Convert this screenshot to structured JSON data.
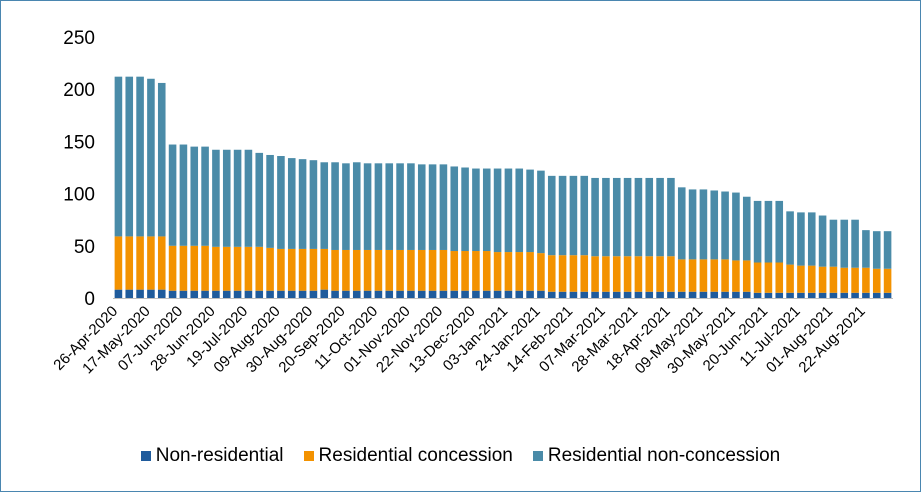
{
  "chart_data": {
    "type": "bar",
    "stacked": true,
    "title": "",
    "xlabel": "",
    "ylabel": "",
    "ylim": [
      0,
      250
    ],
    "yticks": [
      0,
      50,
      100,
      150,
      200,
      250
    ],
    "grid": false,
    "legend_position": "bottom",
    "x_tick_labels": [
      "26-Apr-2020",
      "17-May-2020",
      "07-Jun-2020",
      "28-Jun-2020",
      "19-Jul-2020",
      "09-Aug-2020",
      "30-Aug-2020",
      "20-Sep-2020",
      "11-Oct-2020",
      "01-Nov-2020",
      "22-Nov-2020",
      "13-Dec-2020",
      "03-Jan-2021",
      "24-Jan-2021",
      "14-Feb-2021",
      "07-Mar-2021",
      "28-Mar-2021",
      "18-Apr-2021",
      "09-May-2021",
      "30-May-2021",
      "20-Jun-2021",
      "11-Jul-2021",
      "01-Aug-2021",
      "22-Aug-2021"
    ],
    "categories": [
      "26-Apr-2020",
      "03-May-2020",
      "10-May-2020",
      "17-May-2020",
      "24-May-2020",
      "31-May-2020",
      "07-Jun-2020",
      "14-Jun-2020",
      "21-Jun-2020",
      "28-Jun-2020",
      "05-Jul-2020",
      "12-Jul-2020",
      "19-Jul-2020",
      "26-Jul-2020",
      "02-Aug-2020",
      "09-Aug-2020",
      "16-Aug-2020",
      "23-Aug-2020",
      "30-Aug-2020",
      "06-Sep-2020",
      "13-Sep-2020",
      "20-Sep-2020",
      "27-Sep-2020",
      "04-Oct-2020",
      "11-Oct-2020",
      "18-Oct-2020",
      "25-Oct-2020",
      "01-Nov-2020",
      "08-Nov-2020",
      "15-Nov-2020",
      "22-Nov-2020",
      "29-Nov-2020",
      "06-Dec-2020",
      "13-Dec-2020",
      "20-Dec-2020",
      "27-Dec-2020",
      "03-Jan-2021",
      "10-Jan-2021",
      "17-Jan-2021",
      "24-Jan-2021",
      "31-Jan-2021",
      "07-Feb-2021",
      "14-Feb-2021",
      "21-Feb-2021",
      "28-Feb-2021",
      "07-Mar-2021",
      "14-Mar-2021",
      "21-Mar-2021",
      "28-Mar-2021",
      "04-Apr-2021",
      "11-Apr-2021",
      "18-Apr-2021",
      "25-Apr-2021",
      "02-May-2021",
      "09-May-2021",
      "16-May-2021",
      "23-May-2021",
      "30-May-2021",
      "06-Jun-2021",
      "13-Jun-2021",
      "20-Jun-2021",
      "27-Jun-2021",
      "04-Jul-2021",
      "11-Jul-2021",
      "18-Jul-2021",
      "25-Jul-2021",
      "01-Aug-2021",
      "08-Aug-2021",
      "15-Aug-2021",
      "22-Aug-2021",
      "29-Aug-2021",
      "05-Sep-2021"
    ],
    "series": [
      {
        "name": "Non-residential",
        "color": "#1f5b9c",
        "values": [
          8,
          8,
          8,
          8,
          8,
          7,
          7,
          7,
          7,
          7,
          7,
          7,
          7,
          7,
          7,
          7,
          7,
          7,
          7,
          8,
          7,
          7,
          7,
          7,
          7,
          7,
          7,
          7,
          7,
          7,
          7,
          7,
          7,
          7,
          7,
          7,
          7,
          7,
          7,
          7,
          6,
          6,
          6,
          6,
          6,
          6,
          6,
          6,
          6,
          6,
          6,
          6,
          6,
          6,
          6,
          6,
          6,
          6,
          6,
          5,
          5,
          5,
          5,
          5,
          5,
          5,
          5,
          5,
          5,
          5,
          5,
          5
        ]
      },
      {
        "name": "Residential concession",
        "color": "#f39200",
        "values": [
          51,
          51,
          51,
          51,
          51,
          43,
          43,
          43,
          43,
          42,
          42,
          42,
          42,
          42,
          41,
          40,
          40,
          40,
          40,
          39,
          39,
          39,
          39,
          39,
          39,
          39,
          39,
          39,
          39,
          39,
          39,
          38,
          38,
          38,
          38,
          37,
          37,
          37,
          37,
          36,
          35,
          35,
          35,
          35,
          34,
          34,
          34,
          34,
          34,
          34,
          34,
          34,
          31,
          31,
          31,
          31,
          31,
          30,
          30,
          29,
          29,
          29,
          27,
          26,
          26,
          25,
          25,
          24,
          24,
          24,
          23,
          23
        ]
      },
      {
        "name": "Residential non-concession",
        "color": "#4a8ba8",
        "values": [
          153,
          153,
          153,
          151,
          147,
          97,
          97,
          95,
          95,
          93,
          93,
          93,
          93,
          90,
          89,
          89,
          87,
          86,
          85,
          83,
          84,
          83,
          84,
          83,
          83,
          83,
          83,
          83,
          82,
          82,
          82,
          81,
          80,
          79,
          79,
          80,
          80,
          80,
          79,
          79,
          76,
          76,
          76,
          76,
          75,
          75,
          75,
          75,
          75,
          75,
          75,
          75,
          69,
          67,
          67,
          66,
          65,
          65,
          61,
          59,
          59,
          59,
          51,
          51,
          51,
          49,
          45,
          46,
          46,
          36,
          36,
          36
        ]
      }
    ]
  }
}
